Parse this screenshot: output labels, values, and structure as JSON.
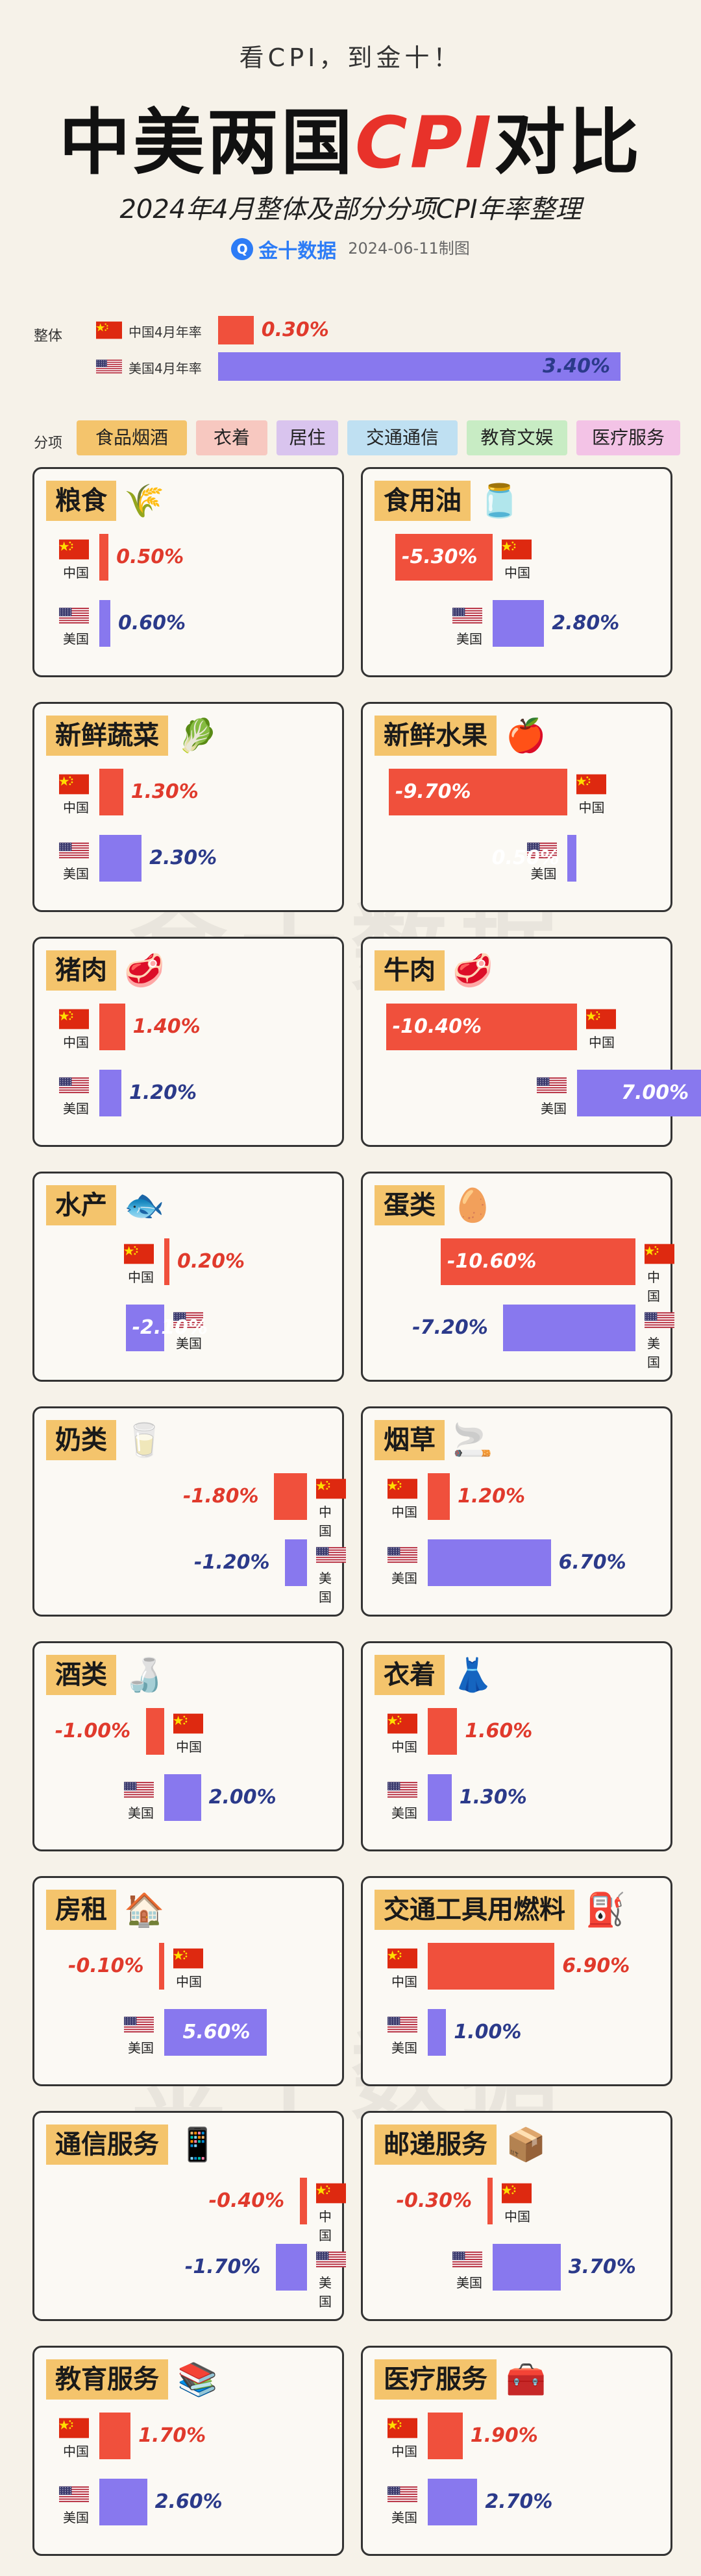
{
  "header": {
    "tagline": "看CPI，到金十！",
    "title_part1": "中美两国",
    "title_part2": "CPI",
    "title_part3": "对比",
    "subtitle": "2024年4月整体及部分分项CPI年率整理",
    "brand_name": "金十数据",
    "date_made": "2024-06-11制图",
    "watermark": "金十数据"
  },
  "overall": {
    "label": "整体",
    "rows": [
      {
        "name": "中国4月年率",
        "value": 0.3,
        "label": "0.30%",
        "color": "#f0503c"
      },
      {
        "name": "美国4月年率",
        "value": 3.4,
        "label": "3.40%",
        "color": "#8878ee"
      }
    ]
  },
  "categories": {
    "label": "分项",
    "items": [
      {
        "label": "食品烟酒",
        "color": "#f4c46c"
      },
      {
        "label": "衣着",
        "color": "#f7c8c0"
      },
      {
        "label": "居住",
        "color": "#d9c4ee"
      },
      {
        "label": "交通通信",
        "color": "#bfe0f2"
      },
      {
        "label": "教育文娱",
        "color": "#c8ecc4"
      },
      {
        "label": "医疗服务",
        "color": "#f3c3e6"
      }
    ]
  },
  "colors": {
    "china": "#f0503c",
    "us": "#8878ee"
  },
  "chart_data": {
    "type": "bar",
    "title": "中美两国CPI对比",
    "subtitle": "2024年4月整体及部分分项CPI年率整理",
    "unit": "%",
    "series_names": {
      "cn": "中国",
      "us": "美国"
    },
    "panels": [
      {
        "name": "粮食",
        "icon": "wheat-icon",
        "cn": 0.5,
        "us": 0.6,
        "cn_label": "0.50%",
        "us_label": "0.60%"
      },
      {
        "name": "食用油",
        "icon": "oil-bottle-icon",
        "cn": -5.3,
        "us": 2.8,
        "cn_label": "-5.30%",
        "us_label": "2.80%"
      },
      {
        "name": "新鲜蔬菜",
        "icon": "vegetable-icon",
        "cn": 1.3,
        "us": 2.3,
        "cn_label": "1.30%",
        "us_label": "2.30%"
      },
      {
        "name": "新鲜水果",
        "icon": "apple-icon",
        "cn": -9.7,
        "us": 0.5,
        "cn_label": "-9.70%",
        "us_label": "0.50%"
      },
      {
        "name": "猪肉",
        "icon": "pork-icon",
        "cn": 1.4,
        "us": 1.2,
        "cn_label": "1.40%",
        "us_label": "1.20%"
      },
      {
        "name": "牛肉",
        "icon": "beef-icon",
        "cn": -10.4,
        "us": 7.0,
        "cn_label": "-10.40%",
        "us_label": "7.00%"
      },
      {
        "name": "水产",
        "icon": "fish-icon",
        "cn": 0.2,
        "us": -2.1,
        "cn_label": "0.20%",
        "us_label": "-2.10%"
      },
      {
        "name": "蛋类",
        "icon": "egg-icon",
        "cn": -10.6,
        "us": -7.2,
        "cn_label": "-10.60%",
        "us_label": "-7.20%"
      },
      {
        "name": "奶类",
        "icon": "milk-icon",
        "cn": -1.8,
        "us": -1.2,
        "cn_label": "-1.80%",
        "us_label": "-1.20%"
      },
      {
        "name": "烟草",
        "icon": "tobacco-icon",
        "cn": 1.2,
        "us": 6.7,
        "cn_label": "1.20%",
        "us_label": "6.70%"
      },
      {
        "name": "酒类",
        "icon": "liquor-bottle-icon",
        "cn": -1.0,
        "us": 2.0,
        "cn_label": "-1.00%",
        "us_label": "2.00%"
      },
      {
        "name": "衣着",
        "icon": "dress-icon",
        "cn": 1.6,
        "us": 1.3,
        "cn_label": "1.60%",
        "us_label": "1.30%"
      },
      {
        "name": "房租",
        "icon": "house-icon",
        "cn": -0.1,
        "us": 5.6,
        "cn_label": "-0.10%",
        "us_label": "5.60%"
      },
      {
        "name": "交通工具用燃料",
        "icon": "fuel-icon",
        "cn": 6.9,
        "us": 1.0,
        "cn_label": "6.90%",
        "us_label": "1.00%"
      },
      {
        "name": "通信服务",
        "icon": "phone-icon",
        "cn": -0.4,
        "us": -1.7,
        "cn_label": "-0.40%",
        "us_label": "-1.70%"
      },
      {
        "name": "邮递服务",
        "icon": "package-icon",
        "cn": -0.3,
        "us": 3.7,
        "cn_label": "-0.30%",
        "us_label": "3.70%"
      },
      {
        "name": "教育服务",
        "icon": "books-icon",
        "cn": 1.7,
        "us": 2.6,
        "cn_label": "1.70%",
        "us_label": "2.60%"
      },
      {
        "name": "医疗服务",
        "icon": "medical-kit-icon",
        "cn": 1.9,
        "us": 2.7,
        "cn_label": "1.90%",
        "us_label": "2.70%"
      }
    ]
  }
}
